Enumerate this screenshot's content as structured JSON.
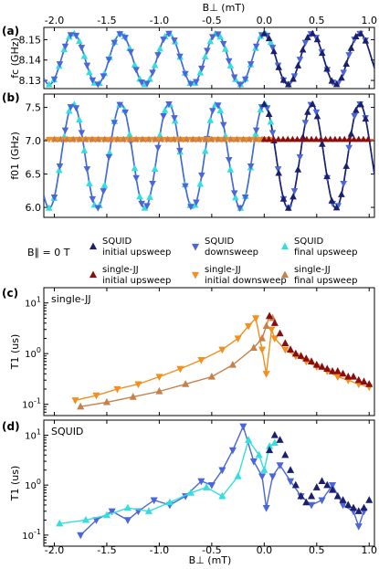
{
  "colors": {
    "squid_up": "#1a1f6e",
    "squid_down": "#4a66d8",
    "squid_final": "#33dede",
    "sjj_up": "#8b0c0c",
    "sjj_down": "#f28f1e",
    "sjj_final": "#c8804a"
  },
  "top_axis": {
    "label": "B⊥ (mT)",
    "ticks": [
      "-2.0",
      "-1.5",
      "-1.0",
      "-0.5",
      "0.0",
      "0.5",
      "1.0"
    ]
  },
  "bottom_axis": {
    "label": "B⊥ (mT)",
    "ticks": [
      "-2.0",
      "-1.5",
      "-1.0",
      "-0.5",
      "0.0",
      "0.5",
      "1.0"
    ]
  },
  "legend": {
    "field_note": "B∥ = 0 T",
    "items": [
      {
        "key": "squid_up",
        "marker": "up",
        "line1": "SQUID",
        "line2": "initial upsweep"
      },
      {
        "key": "squid_down",
        "marker": "down",
        "line1": "SQUID",
        "line2": "downsweep"
      },
      {
        "key": "squid_final",
        "marker": "up",
        "line1": "SQUID",
        "line2": "final upsweep"
      },
      {
        "key": "sjj_up",
        "marker": "up",
        "line1": "single-JJ",
        "line2": "initial upsweep"
      },
      {
        "key": "sjj_down",
        "marker": "down",
        "line1": "single-JJ",
        "line2": "initial downsweep"
      },
      {
        "key": "sjj_final",
        "marker": "up",
        "line1": "single-JJ",
        "line2": "final upsweep"
      }
    ]
  },
  "chart_data": [
    {
      "panel": "(a)",
      "type": "scatter",
      "ylabel": "fc (GHz)",
      "xlim": [
        -2.1,
        1.05
      ],
      "ylim": [
        8.126,
        8.156
      ],
      "yticks": [
        "8.15",
        "8.14",
        "8.13"
      ],
      "ytick_values": [
        8.15,
        8.14,
        8.13
      ],
      "model": {
        "period": 0.455,
        "peak_phase": 0.0,
        "center": 8.1405,
        "amplitude": 0.0125
      }
    },
    {
      "panel": "(b)",
      "type": "scatter",
      "ylabel": "f01 (GHz)",
      "xlim": [
        -2.1,
        1.05
      ],
      "ylim": [
        5.85,
        7.7
      ],
      "yticks": [
        "7.5",
        "7.0",
        "6.5",
        "6.0"
      ],
      "ytick_values": [
        7.5,
        7.0,
        6.5,
        6.0
      ],
      "model": {
        "period": 0.455,
        "peak_phase": 0.0,
        "center": 6.77,
        "amplitude": 0.78
      },
      "single_jj_level": 7.02
    },
    {
      "panel": "(c)",
      "type": "scatter",
      "scale": "log",
      "panel_label": "single-JJ",
      "ylabel": "T1 (us)",
      "xlim": [
        -2.1,
        1.05
      ],
      "ylim": [
        0.06,
        20
      ],
      "yticks": [
        "10^1",
        "10^0",
        "10^-1"
      ],
      "series": [
        {
          "key": "sjj_down",
          "marker": "down",
          "curve": true,
          "x": [
            -1.8,
            -1.6,
            -1.4,
            -1.2,
            -1.0,
            -0.8,
            -0.6,
            -0.4,
            -0.25,
            -0.15,
            -0.08,
            -0.02,
            0.02,
            0.07,
            0.1,
            0.2,
            0.3,
            0.4,
            0.5,
            0.6,
            0.7,
            0.8,
            0.9,
            1.0
          ],
          "y": [
            0.12,
            0.15,
            0.2,
            0.25,
            0.35,
            0.5,
            0.75,
            1.2,
            2.0,
            3.5,
            5.0,
            1.2,
            0.4,
            3.0,
            2.0,
            1.2,
            0.9,
            0.7,
            0.55,
            0.45,
            0.35,
            0.3,
            0.25,
            0.22
          ]
        },
        {
          "key": "sjj_final",
          "marker": "up",
          "curve": true,
          "x": [
            -1.75,
            -1.5,
            -1.25,
            -1.0,
            -0.75,
            -0.5,
            -0.3,
            -0.1,
            -0.02,
            0.02,
            0.05,
            0.08
          ],
          "y": [
            0.09,
            0.11,
            0.14,
            0.18,
            0.25,
            0.35,
            0.6,
            1.3,
            2.0,
            3.5,
            5.5,
            5.0
          ]
        },
        {
          "key": "sjj_up",
          "marker": "up",
          "curve": false,
          "x": [
            0.05,
            0.1,
            0.15,
            0.2,
            0.25,
            0.3,
            0.35,
            0.4,
            0.45,
            0.5,
            0.55,
            0.6,
            0.65,
            0.7,
            0.75,
            0.8,
            0.85,
            0.9,
            0.95,
            1.0
          ],
          "y": [
            5.5,
            4.0,
            2.5,
            1.6,
            1.2,
            1.0,
            0.9,
            0.8,
            0.7,
            0.6,
            0.55,
            0.5,
            0.45,
            0.45,
            0.4,
            0.35,
            0.35,
            0.3,
            0.28,
            0.25
          ]
        }
      ]
    },
    {
      "panel": "(d)",
      "type": "scatter",
      "scale": "log",
      "panel_label": "SQUID",
      "ylabel": "T1 (us)",
      "xlim": [
        -2.1,
        1.05
      ],
      "ylim": [
        0.06,
        20
      ],
      "yticks": [
        "10^1",
        "10^0",
        "10^-1"
      ],
      "series": [
        {
          "key": "squid_down",
          "marker": "down",
          "curve": true,
          "x": [
            -1.75,
            -1.6,
            -1.45,
            -1.3,
            -1.2,
            -1.05,
            -0.9,
            -0.75,
            -0.6,
            -0.5,
            -0.4,
            -0.3,
            -0.2,
            -0.1,
            -0.02,
            0.02,
            0.08,
            0.15,
            0.25,
            0.35,
            0.45,
            0.55,
            0.65,
            0.75,
            0.85,
            0.9,
            0.95
          ],
          "y": [
            0.1,
            0.2,
            0.3,
            0.2,
            0.3,
            0.5,
            0.4,
            0.6,
            1.2,
            1.0,
            2.0,
            5.0,
            15.0,
            3.0,
            1.5,
            0.35,
            1.5,
            2.5,
            1.2,
            0.6,
            0.4,
            0.5,
            1.0,
            0.4,
            0.3,
            0.15,
            0.3
          ]
        },
        {
          "key": "squid_final",
          "marker": "up",
          "curve": true,
          "x": [
            -1.95,
            -1.7,
            -1.5,
            -1.3,
            -1.1,
            -0.9,
            -0.7,
            -0.55,
            -0.4,
            -0.25,
            -0.15,
            -0.05,
            0.0,
            0.05,
            0.1
          ],
          "y": [
            0.17,
            0.2,
            0.25,
            0.35,
            0.3,
            0.45,
            0.7,
            0.9,
            0.6,
            1.5,
            8.0,
            4.0,
            2.0,
            6.0,
            7.0
          ]
        },
        {
          "key": "squid_up",
          "marker": "up",
          "curve": false,
          "x": [
            0.05,
            0.1,
            0.15,
            0.2,
            0.25,
            0.3,
            0.35,
            0.4,
            0.45,
            0.5,
            0.55,
            0.6,
            0.65,
            0.7,
            0.75,
            0.8,
            0.85,
            0.9,
            0.95,
            1.0
          ],
          "y": [
            5.0,
            10.0,
            8.0,
            4.0,
            2.0,
            1.0,
            0.6,
            0.45,
            0.6,
            0.9,
            1.2,
            1.0,
            0.8,
            0.6,
            0.5,
            0.4,
            0.35,
            0.3,
            0.35,
            0.5
          ]
        }
      ]
    }
  ]
}
